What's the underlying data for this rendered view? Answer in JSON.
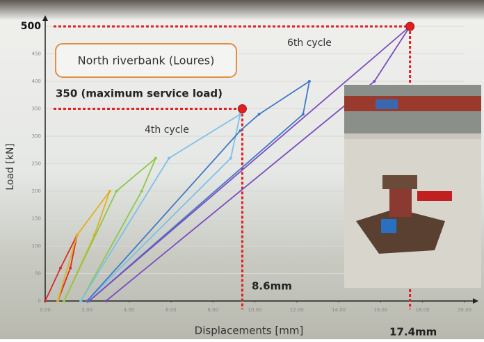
{
  "chart_data": {
    "type": "line",
    "xlabel": "Displacements [mm]",
    "ylabel": "Load [kN]",
    "xlim": [
      0,
      20
    ],
    "ylim": [
      0,
      500
    ],
    "xticks": [
      {
        "value": 0,
        "label": "0.00"
      },
      {
        "value": 2,
        "label": "2.00"
      },
      {
        "value": 4,
        "label": "4.00"
      },
      {
        "value": 6,
        "label": "6.00"
      },
      {
        "value": 8,
        "label": "8.00"
      },
      {
        "value": 10,
        "label": "10.00"
      },
      {
        "value": 12,
        "label": "12.00"
      },
      {
        "value": 14,
        "label": "14.00"
      },
      {
        "value": 16,
        "label": "16.00"
      },
      {
        "value": 18,
        "label": "18.00"
      },
      {
        "value": 20,
        "label": "20.00"
      }
    ],
    "yticks": [
      0,
      50,
      100,
      150,
      200,
      250,
      300,
      350,
      400,
      450,
      500
    ],
    "grid": true,
    "series": [
      {
        "color": "#d62a2a",
        "x": [
          0,
          0.73,
          1.52,
          1.2,
          0.6
        ],
        "values": [
          0,
          60,
          120,
          60,
          0
        ]
      },
      {
        "color": "#e0b020",
        "x": [
          0.6,
          1.52,
          3.08,
          2.35,
          0.9
        ],
        "values": [
          0,
          120,
          200,
          120,
          0
        ]
      },
      {
        "color": "#8cc84b",
        "x": [
          0.9,
          3.4,
          5.27,
          4.6,
          1.7
        ],
        "values": [
          0,
          200,
          260,
          200,
          0
        ]
      },
      {
        "color": "#7cc0e8",
        "x": [
          1.7,
          5.9,
          9.3,
          8.85,
          2.0
        ],
        "values": [
          0,
          260,
          340,
          260,
          0
        ]
      },
      {
        "color": "#3e78c8",
        "x": [
          2.0,
          9.3,
          10.2,
          12.6,
          12.3,
          2.1
        ],
        "values": [
          0,
          310,
          340,
          400,
          340,
          0
        ]
      },
      {
        "color": "#7c4cc0",
        "x": [
          2.1,
          17.4,
          15.7,
          2.9
        ],
        "values": [
          0,
          500,
          400,
          0
        ]
      }
    ],
    "markers": [
      {
        "x": 9.4,
        "y": 350
      },
      {
        "x": 17.4,
        "y": 500
      }
    ],
    "annotations": [
      "North riverbank (Loures)",
      "350 (maximum service load)",
      "4th cycle",
      "6th cycle",
      "8.6mm",
      "17.4mm"
    ]
  }
}
